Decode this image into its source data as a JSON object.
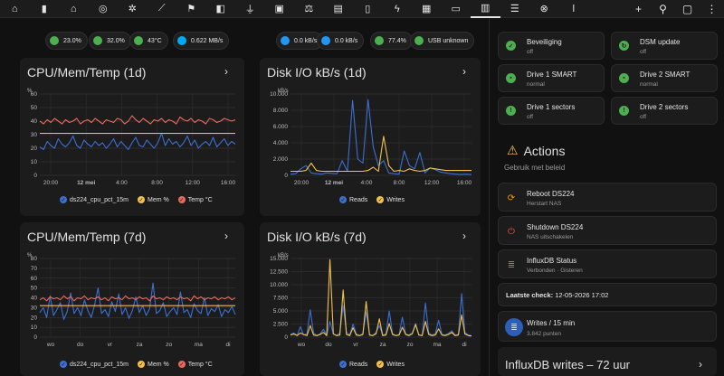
{
  "topbar": {
    "tabs": [
      {
        "name": "home-icon",
        "glyph": "⌂"
      },
      {
        "name": "remote-icon",
        "glyph": "▮"
      },
      {
        "name": "house-icon",
        "glyph": "⌂"
      },
      {
        "name": "radar-icon",
        "glyph": "◎"
      },
      {
        "name": "sun-cog-icon",
        "glyph": "✲"
      },
      {
        "name": "chart-line-icon",
        "glyph": "⟋"
      },
      {
        "name": "flag-icon",
        "glyph": "⚑"
      },
      {
        "name": "cctv-icon",
        "glyph": "◧"
      },
      {
        "name": "ev-plug-icon",
        "glyph": "⏚"
      },
      {
        "name": "car-battery-icon",
        "glyph": "▣"
      },
      {
        "name": "scale-icon",
        "glyph": "⚖"
      },
      {
        "name": "cash-icon",
        "glyph": "▤"
      },
      {
        "name": "battery-charging-icon",
        "glyph": "▯"
      },
      {
        "name": "flash-icon",
        "glyph": "ϟ"
      },
      {
        "name": "calendar-check-icon",
        "glyph": "▦"
      },
      {
        "name": "monitor-dashboard-icon",
        "glyph": "▭"
      },
      {
        "name": "nas-icon",
        "glyph": "▥",
        "active": true
      },
      {
        "name": "server-icon",
        "glyph": "☰"
      },
      {
        "name": "close-circle-icon",
        "glyph": "⊗"
      },
      {
        "name": "thermometer-icon",
        "glyph": "ǀ"
      }
    ],
    "right": [
      {
        "name": "add-icon",
        "glyph": "+"
      },
      {
        "name": "search-icon",
        "glyph": "⚲"
      },
      {
        "name": "assist-icon",
        "glyph": "▢"
      },
      {
        "name": "more-vert-icon",
        "glyph": "⋮"
      }
    ]
  },
  "chips": [
    {
      "name": "cpu-chip",
      "text": "23.0%",
      "color": "#4caf50"
    },
    {
      "name": "memory-chip",
      "text": "32.0%",
      "color": "#4caf50"
    },
    {
      "name": "temp-chip",
      "text": "43°C",
      "color": "#4caf50"
    },
    {
      "name": "network-chip",
      "text": "0.622 MB/s",
      "color": "#03a9f4"
    },
    {
      "name": "disk-read-chip",
      "text": "0.0 kB/s",
      "color": "#2196f3"
    },
    {
      "name": "disk-write-chip",
      "text": "0.0 kB/s",
      "color": "#2196f3"
    },
    {
      "name": "volume-chip",
      "text": "77.4%",
      "color": "#4caf50"
    },
    {
      "name": "usb-chip",
      "text": "USB unknown",
      "color": "#4caf50"
    }
  ],
  "cards": {
    "cpu1d": {
      "title": "CPU/Mem/Temp (1d)"
    },
    "disk1d": {
      "title": "Disk I/O kB/s (1d)"
    },
    "cpu7d": {
      "title": "CPU/Mem/Temp (7d)"
    },
    "disk7d": {
      "title": "Disk I/O kB/s (7d)"
    },
    "influx": {
      "title": "InfluxDB writes – 72 uur"
    }
  },
  "legends": {
    "cpu": [
      "ds224_cpu_pct_15m",
      "Mem %",
      "Temp °C"
    ],
    "disk": [
      "Reads",
      "Writes"
    ]
  },
  "colors": {
    "blue": "#3d6fd1",
    "yellow": "#f2c14e",
    "red": "#e86a5c",
    "green": "#4caf50",
    "orange": "#ff9800"
  },
  "tiles": [
    {
      "name": "security-tile",
      "title": "Beveiliging",
      "sub": "off",
      "icon": "shield-check-icon",
      "glyph": "✓"
    },
    {
      "name": "dsm-update-tile",
      "title": "DSM update",
      "sub": "off",
      "icon": "update-icon",
      "glyph": "↻"
    },
    {
      "name": "drive1-smart-tile",
      "title": "Drive 1 SMART",
      "sub": "normal",
      "icon": "harddisk-icon",
      "glyph": "▪"
    },
    {
      "name": "drive2-smart-tile",
      "title": "Drive 2 SMART",
      "sub": "normal",
      "icon": "harddisk-icon",
      "glyph": "▪"
    },
    {
      "name": "drive1-sectors-tile",
      "title": "Drive 1 sectors",
      "sub": "off",
      "icon": "alert-circle-icon",
      "glyph": "!"
    },
    {
      "name": "drive2-sectors-tile",
      "title": "Drive 2 sectors",
      "sub": "off",
      "icon": "alert-circle-icon",
      "glyph": "!"
    }
  ],
  "actions": {
    "title": "Actions",
    "subtitle": "Gebruik met beleid",
    "reboot": {
      "title": "Reboot DS224",
      "sub": "Herstart NAS"
    },
    "shutdown": {
      "title": "Shutdown DS224",
      "sub": "NAS uitschakelen"
    },
    "influx": {
      "title": "InfluxDB Status",
      "sub": "Verbonden · Gisteren"
    },
    "lastcheck": {
      "label": "Laatste check:",
      "value": "12-05-2026 17:02"
    },
    "writes": {
      "title": "Writes / 15 min",
      "sub": "3.842 punten"
    }
  },
  "chart_data": [
    {
      "type": "line",
      "title": "CPU/Mem/Temp (1d)",
      "ylabel": "%",
      "ylim": [
        0,
        60
      ],
      "yticks": [
        "0",
        "10",
        "20",
        "30",
        "40",
        "50",
        "60"
      ],
      "xticks": [
        "20:00",
        "12 mei",
        "4:00",
        "8:00",
        "12:00",
        "16:00"
      ],
      "legend": "bottom",
      "series": [
        {
          "name": "ds224_cpu_pct_15m",
          "color": "#3d6fd1",
          "values": [
            21,
            19,
            25,
            22,
            20,
            27,
            23,
            21,
            24,
            29,
            22,
            20,
            26,
            23,
            21,
            25,
            22,
            24,
            20,
            23,
            27,
            21,
            25,
            22,
            19,
            24,
            28,
            22,
            21,
            26,
            23,
            20,
            24,
            31,
            22,
            27,
            23,
            25,
            21,
            24,
            29,
            22,
            26,
            20,
            23,
            25,
            22,
            28,
            21,
            24,
            27,
            22,
            25,
            23
          ]
        },
        {
          "name": "Mem %",
          "color": "#f2c14e",
          "values": [
            31,
            31,
            31,
            31,
            31,
            31,
            31,
            31,
            31,
            31,
            31,
            31,
            31,
            31,
            31,
            31,
            31,
            31,
            31,
            31,
            31,
            31,
            31,
            31,
            31,
            31,
            31,
            31,
            31,
            31,
            31,
            31,
            31,
            31,
            31,
            31,
            31,
            31,
            31,
            31,
            31,
            31,
            31,
            31,
            31,
            31,
            31,
            31,
            31,
            31,
            31,
            31,
            31,
            31
          ]
        },
        {
          "name": "Temp °C",
          "color": "#e86a5c",
          "values": [
            40,
            38,
            41,
            39,
            42,
            40,
            38,
            41,
            39,
            40,
            42,
            38,
            40,
            41,
            39,
            42,
            40,
            38,
            41,
            40,
            39,
            42,
            41,
            38,
            40,
            44,
            41,
            39,
            42,
            40,
            38,
            41,
            40,
            42,
            39,
            41,
            40,
            38,
            43,
            41,
            40,
            42,
            39,
            41,
            40,
            38,
            42,
            41,
            39,
            40,
            42,
            41,
            40,
            41
          ]
        }
      ]
    },
    {
      "type": "line",
      "title": "Disk I/O kB/s (1d)",
      "ylabel": "kB/s",
      "ylim": [
        0,
        10000
      ],
      "yticks": [
        "0",
        "2.000",
        "4.000",
        "6.000",
        "8.000",
        "10.000"
      ],
      "xticks": [
        "20:00",
        "12 mei",
        "4:00",
        "8:00",
        "12:00",
        "16:00"
      ],
      "legend": "bottom",
      "series": [
        {
          "name": "Reads",
          "color": "#3d6fd1",
          "values": [
            150,
            200,
            800,
            1200,
            300,
            200,
            150,
            300,
            250,
            200,
            1800,
            500,
            9200,
            2000,
            1500,
            9300,
            3500,
            1200,
            1800,
            300,
            200,
            150,
            3000,
            1200,
            800,
            2800,
            300,
            900,
            700,
            400,
            300,
            200,
            150,
            100,
            150,
            100
          ]
        },
        {
          "name": "Writes",
          "color": "#f2c14e",
          "values": [
            500,
            500,
            500,
            600,
            1500,
            600,
            500,
            500,
            500,
            500,
            500,
            500,
            500,
            500,
            500,
            600,
            1000,
            500,
            4800,
            1200,
            500,
            600,
            500,
            800,
            600,
            500,
            600,
            900,
            800,
            700,
            600,
            600,
            600,
            600,
            600,
            600
          ]
        }
      ]
    },
    {
      "type": "line",
      "title": "CPU/Mem/Temp (7d)",
      "ylabel": "%",
      "ylim": [
        0,
        80
      ],
      "yticks": [
        "0",
        "10",
        "20",
        "30",
        "40",
        "50",
        "60",
        "70",
        "80"
      ],
      "xticks": [
        "wo",
        "do",
        "vr",
        "za",
        "zo",
        "ma",
        "di"
      ],
      "legend": "bottom",
      "series": [
        {
          "name": "ds224_cpu_pct_15m",
          "color": "#3d6fd1",
          "values": [
            25,
            30,
            20,
            42,
            22,
            28,
            35,
            18,
            26,
            45,
            24,
            30,
            22,
            38,
            27,
            20,
            33,
            50,
            24,
            28,
            21,
            36,
            26,
            44,
            23,
            30,
            19,
            27,
            41,
            25,
            32,
            22,
            29,
            55,
            24,
            27,
            35,
            21,
            26,
            30,
            23,
            46,
            25,
            28,
            20,
            34,
            27,
            24,
            40,
            22,
            29,
            26,
            33,
            21,
            28,
            25,
            31,
            23
          ]
        },
        {
          "name": "Mem %",
          "color": "#f2c14e",
          "values": [
            32,
            32,
            32,
            32,
            32,
            32,
            32,
            32,
            32,
            32,
            32,
            32,
            32,
            32,
            32,
            32,
            32,
            32,
            32,
            32,
            32,
            32,
            32,
            32,
            32,
            32,
            32,
            32,
            32,
            32,
            32,
            32,
            32,
            32,
            32,
            32,
            32,
            32,
            32,
            32,
            32,
            32,
            32,
            32,
            32,
            32,
            32,
            32,
            32,
            32,
            32,
            32,
            32,
            32,
            32,
            32,
            32,
            32
          ]
        },
        {
          "name": "Temp °C",
          "color": "#e86a5c",
          "values": [
            38,
            40,
            37,
            41,
            39,
            40,
            38,
            42,
            39,
            41,
            37,
            40,
            39,
            42,
            38,
            40,
            39,
            41,
            38,
            40,
            37,
            41,
            39,
            40,
            38,
            42,
            39,
            40,
            38,
            41,
            39,
            40,
            37,
            42,
            39,
            40,
            38,
            41,
            39,
            40,
            38,
            41,
            39,
            40,
            37,
            42,
            39,
            41,
            38,
            40,
            39,
            41,
            38,
            40,
            39,
            41,
            38,
            40
          ]
        }
      ]
    },
    {
      "type": "line",
      "title": "Disk I/O kB/s (7d)",
      "ylabel": "kB/s",
      "ylim": [
        0,
        15000
      ],
      "yticks": [
        "0",
        "2.500",
        "5.000",
        "7.500",
        "10.000",
        "12.500",
        "15.000"
      ],
      "xticks": [
        "wo",
        "do",
        "vr",
        "za",
        "zo",
        "ma",
        "di"
      ],
      "legend": "bottom",
      "series": [
        {
          "name": "Reads",
          "color": "#3d6fd1",
          "values": [
            500,
            800,
            300,
            2000,
            400,
            600,
            5200,
            800,
            300,
            600,
            1500,
            400,
            3000,
            600,
            300,
            800,
            6000,
            900,
            400,
            2500,
            600,
            300,
            700,
            4800,
            500,
            300,
            900,
            2200,
            400,
            600,
            5000,
            700,
            300,
            500,
            3800,
            600,
            400,
            800,
            2600,
            500,
            300,
            6500,
            800,
            400,
            600,
            3200,
            500,
            400,
            700,
            1200,
            400,
            500,
            8300,
            900,
            400,
            300
          ]
        },
        {
          "name": "Writes",
          "color": "#f2c14e",
          "values": [
            400,
            600,
            300,
            800,
            500,
            300,
            2200,
            400,
            300,
            500,
            900,
            300,
            14800,
            600,
            300,
            400,
            9000,
            500,
            300,
            1800,
            400,
            300,
            500,
            6800,
            400,
            300,
            600,
            3500,
            300,
            400,
            2600,
            500,
            300,
            400,
            1900,
            500,
            300,
            600,
            2400,
            400,
            300,
            3000,
            500,
            300,
            400,
            1600,
            400,
            300,
            500,
            900,
            300,
            400,
            4200,
            600,
            300,
            200
          ]
        }
      ]
    }
  ]
}
